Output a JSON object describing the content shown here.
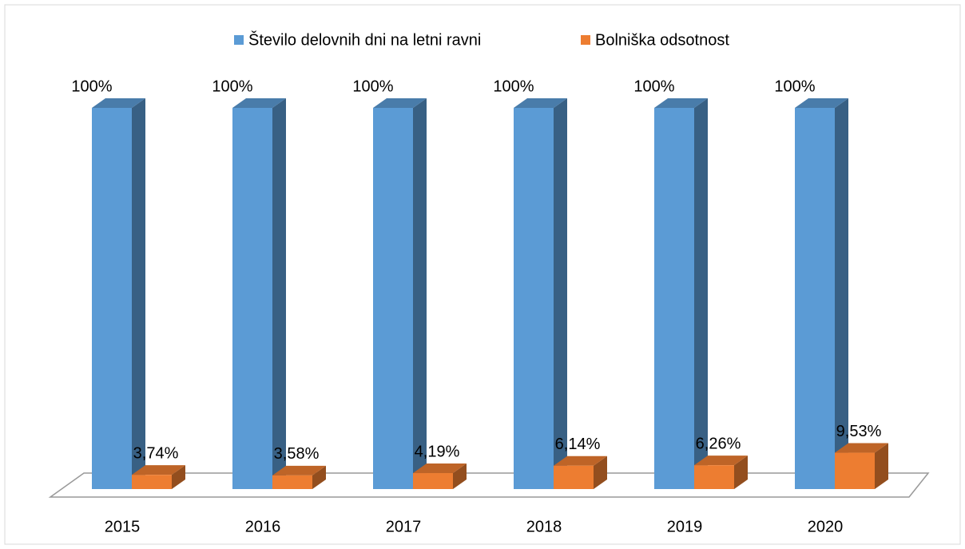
{
  "chart_data": {
    "type": "bar3d",
    "categories": [
      "2015",
      "2016",
      "2017",
      "2018",
      "2019",
      "2020"
    ],
    "series": [
      {
        "name": "Število delovnih dni na letni ravni",
        "color": "#5b9bd5",
        "values": [
          100,
          100,
          100,
          100,
          100,
          100
        ],
        "value_labels": [
          "100%",
          "100%",
          "100%",
          "100%",
          "100%",
          "100%"
        ]
      },
      {
        "name": "Bolniška odsotnost",
        "color": "#ed7d31",
        "values": [
          3.74,
          3.58,
          4.19,
          6.14,
          6.26,
          9.53
        ],
        "value_labels": [
          "3,74%",
          "3,58%",
          "4,19%",
          "6,14%",
          "6,26%",
          "9,53%"
        ]
      }
    ],
    "legend": "top"
  }
}
